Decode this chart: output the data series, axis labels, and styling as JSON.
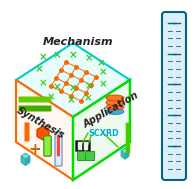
{
  "title": "Mechanism",
  "left_face_label": "Synthesis",
  "right_face_label": "Application",
  "scxrd_label": "SCXRD",
  "cube_outline_color": "#00dd00",
  "top_face_outline_color": "#00cccc",
  "left_face_outline_color": "#ff6600",
  "right_face_fill": "#eefaee",
  "top_face_fill": "#e8fcfc",
  "left_face_fill": "#fff8f0",
  "ruler_outline_color": "#006688",
  "ruler_fill": "#ddeef5",
  "mechanism_color": "#222222",
  "synthesis_color": "#222222",
  "application_color": "#222222",
  "scxrd_color": "#00aacc",
  "cross_color": "#33cc22",
  "node_color": "#ff6600",
  "edge_color": "#cc8844",
  "bg_color": "#ffffff"
}
